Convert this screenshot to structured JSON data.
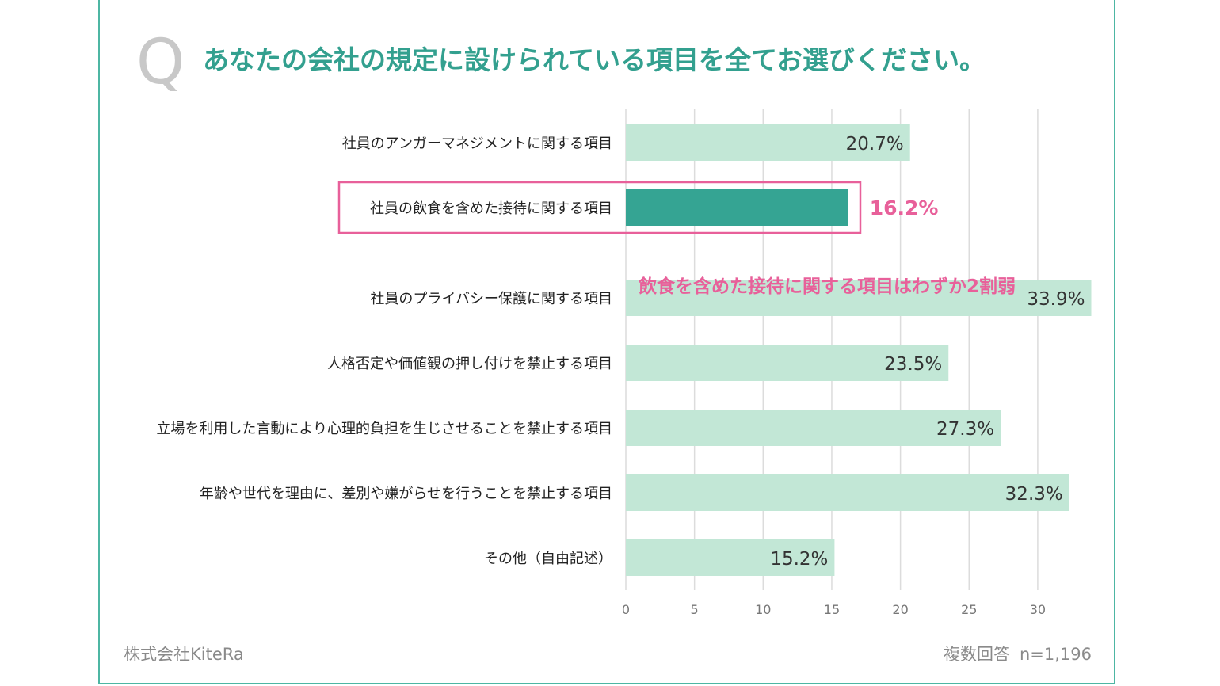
{
  "header": {
    "q_mark": "Q",
    "title": "あなたの会社の規定に設けられている項目を全てお選びください。"
  },
  "footer": {
    "company": "株式会社KiteRa",
    "note_type": "複数回答",
    "note_n": "n=1,196"
  },
  "colors": {
    "accent": "#33a08f",
    "bar": "#c2e7d6",
    "bar_highlight": "#35a493",
    "highlight_text": "#e8609a",
    "grid": "#dcdcdc"
  },
  "chart_data": {
    "type": "bar",
    "orientation": "horizontal",
    "title": "あなたの会社の規定に設けられている項目を全てお選びください。",
    "categories": [
      "社員のアンガーマネジメントに関する項目",
      "社員の飲食を含めた接待に関する項目",
      "社員のプライバシー保護に関する項目",
      "人格否定や価値観の押し付けを禁止する項目",
      "立場を利用した言動により心理的負担を生じさせることを禁止する項目",
      "年齢や世代を理由に、差別や嫌がらせを行うことを禁止する項目",
      "その他（自由記述）"
    ],
    "values": [
      20.7,
      16.2,
      33.9,
      23.5,
      27.3,
      32.3,
      15.2
    ],
    "value_labels": [
      "20.7%",
      "16.2%",
      "33.9%",
      "23.5%",
      "27.3%",
      "32.3%",
      "15.2%"
    ],
    "xlim": [
      0,
      33.9
    ],
    "xticks": [
      "0",
      "5",
      "10",
      "15",
      "20",
      "25",
      "30"
    ],
    "xtick_values": [
      0,
      5,
      10,
      15,
      20,
      25,
      30
    ],
    "grid": true,
    "highlight_index": 1,
    "annotation": "飲食を含めた接待に関する項目はわずか2割弱"
  }
}
